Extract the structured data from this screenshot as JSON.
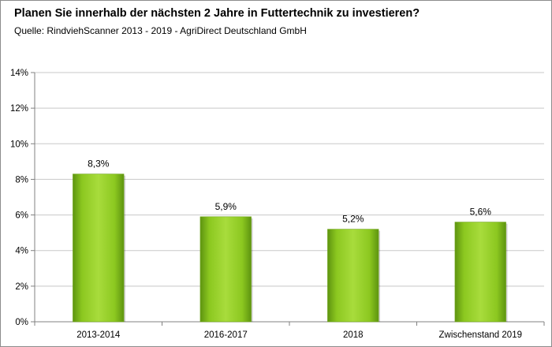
{
  "chart_data": {
    "type": "bar",
    "title": "Planen Sie innerhalb der nächsten 2 Jahre in Futtertechnik zu investieren?",
    "subtitle": "Quelle: RindviehScanner 2013 - 2019 - AgriDirect Deutschland GmbH",
    "categories": [
      "2013-2014",
      "2016-2017",
      "2018",
      "Zwischenstand 2019"
    ],
    "values": [
      8.3,
      5.9,
      5.2,
      5.6
    ],
    "data_labels": [
      "8,3%",
      "5,9%",
      "5,2%",
      "5,6%"
    ],
    "yticks": [
      0,
      2,
      4,
      6,
      8,
      10,
      12,
      14
    ],
    "ytick_labels": [
      "0%",
      "2%",
      "4%",
      "6%",
      "8%",
      "10%",
      "12%",
      "14%"
    ],
    "ylim": [
      0,
      14
    ],
    "xlabel": "",
    "ylabel": "",
    "grid": true,
    "legend": "none",
    "colors": {
      "bar_fill_light": "#a8dc3c",
      "bar_fill": "#8cc820",
      "bar_fill_dark": "#5e9410",
      "gridline": "#c8c8c8",
      "axis": "#808080",
      "frame": "#8c8c8c"
    }
  }
}
